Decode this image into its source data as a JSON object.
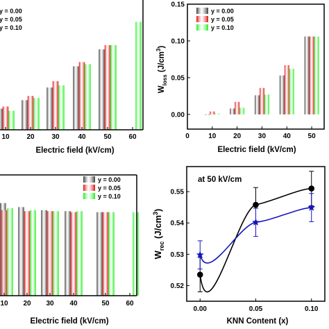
{
  "colors": {
    "y000": "#3c3c3c",
    "y005": "#e01010",
    "y010": "#22ee22",
    "knn_black": "#000000",
    "knn_blue": "#1515c0",
    "frame": "#000000"
  },
  "legend_labels": [
    "y = 0.00",
    "y = 0.05",
    "y = 0.10"
  ],
  "chart_data": [
    {
      "id": "panel-a",
      "type": "bar",
      "xlabel": "Electric field (kV/cm)",
      "x_ticks": [
        "10",
        "20",
        "30",
        "40",
        "50",
        "60"
      ],
      "categories": [
        "10",
        "20",
        "30",
        "40",
        "50",
        "60"
      ],
      "series": [
        {
          "name": "y = 0.00",
          "values": [
            0.05,
            0.07,
            0.1,
            0.15,
            0.19,
            0.0
          ]
        },
        {
          "name": "y = 0.05",
          "values": [
            0.055,
            0.08,
            0.115,
            0.16,
            0.2,
            0.0
          ]
        },
        {
          "name": "y = 0.10",
          "values": [
            0.045,
            0.075,
            0.105,
            0.155,
            0.2,
            0.255
          ]
        }
      ],
      "ylim": [
        0,
        0.3
      ],
      "legend": "top-left"
    },
    {
      "id": "panel-b",
      "type": "bar",
      "xlabel": "Electric field (kV/cm)",
      "ylabel_main": "W",
      "ylabel_sub": "loss",
      "ylabel_unit": " (J/cm",
      "ylabel_sup": "3",
      "ylabel_close": ")",
      "x_ticks": [
        "0",
        "10",
        "20",
        "30",
        "40",
        "50"
      ],
      "y_ticks": [
        "0.00",
        "0.05",
        "0.10",
        "0.15"
      ],
      "xlim": [
        0,
        55
      ],
      "ylim": [
        -0.02,
        0.15
      ],
      "categories": [
        "10",
        "20",
        "30",
        "40",
        "50"
      ],
      "x": [
        10,
        20,
        30,
        40,
        50
      ],
      "series": [
        {
          "name": "y = 0.00",
          "values": [
            0.0,
            0.008,
            0.026,
            0.053,
            0.106
          ]
        },
        {
          "name": "y = 0.05",
          "values": [
            0.004,
            0.017,
            0.036,
            0.067,
            0.106
          ]
        },
        {
          "name": "y = 0.10",
          "values": [
            0.001,
            0.009,
            0.027,
            0.062,
            0.106
          ]
        }
      ],
      "legend": "top-left"
    },
    {
      "id": "panel-c",
      "type": "bar",
      "xlabel": "Electric field (kV/cm)",
      "x_ticks": [
        "10",
        "20",
        "30",
        "40",
        "50",
        "60"
      ],
      "categories": [
        "10",
        "20",
        "30",
        "40",
        "50",
        "60"
      ],
      "series": [
        {
          "name": "y = 0.00",
          "values": [
            0.92,
            0.88,
            0.85,
            0.84,
            0.83,
            0.0
          ]
        },
        {
          "name": "y = 0.05",
          "values": [
            0.85,
            0.84,
            0.84,
            0.83,
            0.83,
            0.0
          ]
        },
        {
          "name": "y = 0.10",
          "values": [
            0.87,
            0.85,
            0.84,
            0.84,
            0.83,
            0.83
          ]
        }
      ],
      "ylim": [
        0.0,
        1.2
      ],
      "legend": "top-right"
    },
    {
      "id": "panel-d",
      "type": "line",
      "annotation": "at 50 kV/cm",
      "xlabel": "KNN Content (x)",
      "ylabel_main": "W",
      "ylabel_sub": "rec",
      "ylabel_unit": " (J/cm",
      "ylabel_sup": "3",
      "ylabel_close": ")",
      "x_ticks": [
        "0.00",
        "0.05",
        "0.10"
      ],
      "y_ticks": [
        "0.52",
        "0.53",
        "0.54",
        "0.55"
      ],
      "xlim": [
        -0.012,
        0.112
      ],
      "ylim": [
        0.515,
        0.558
      ],
      "x": [
        0.0,
        0.05,
        0.1
      ],
      "series": [
        {
          "color": "black",
          "marker": "circle",
          "values": [
            0.5235,
            0.5458,
            0.551
          ],
          "err": [
            0.0055,
            0.0055,
            0.0055
          ]
        },
        {
          "color": "blue",
          "marker": "star",
          "values": [
            0.5298,
            0.5402,
            0.5449
          ],
          "err": [
            0.0045,
            0.0045,
            0.0045
          ]
        }
      ]
    }
  ]
}
